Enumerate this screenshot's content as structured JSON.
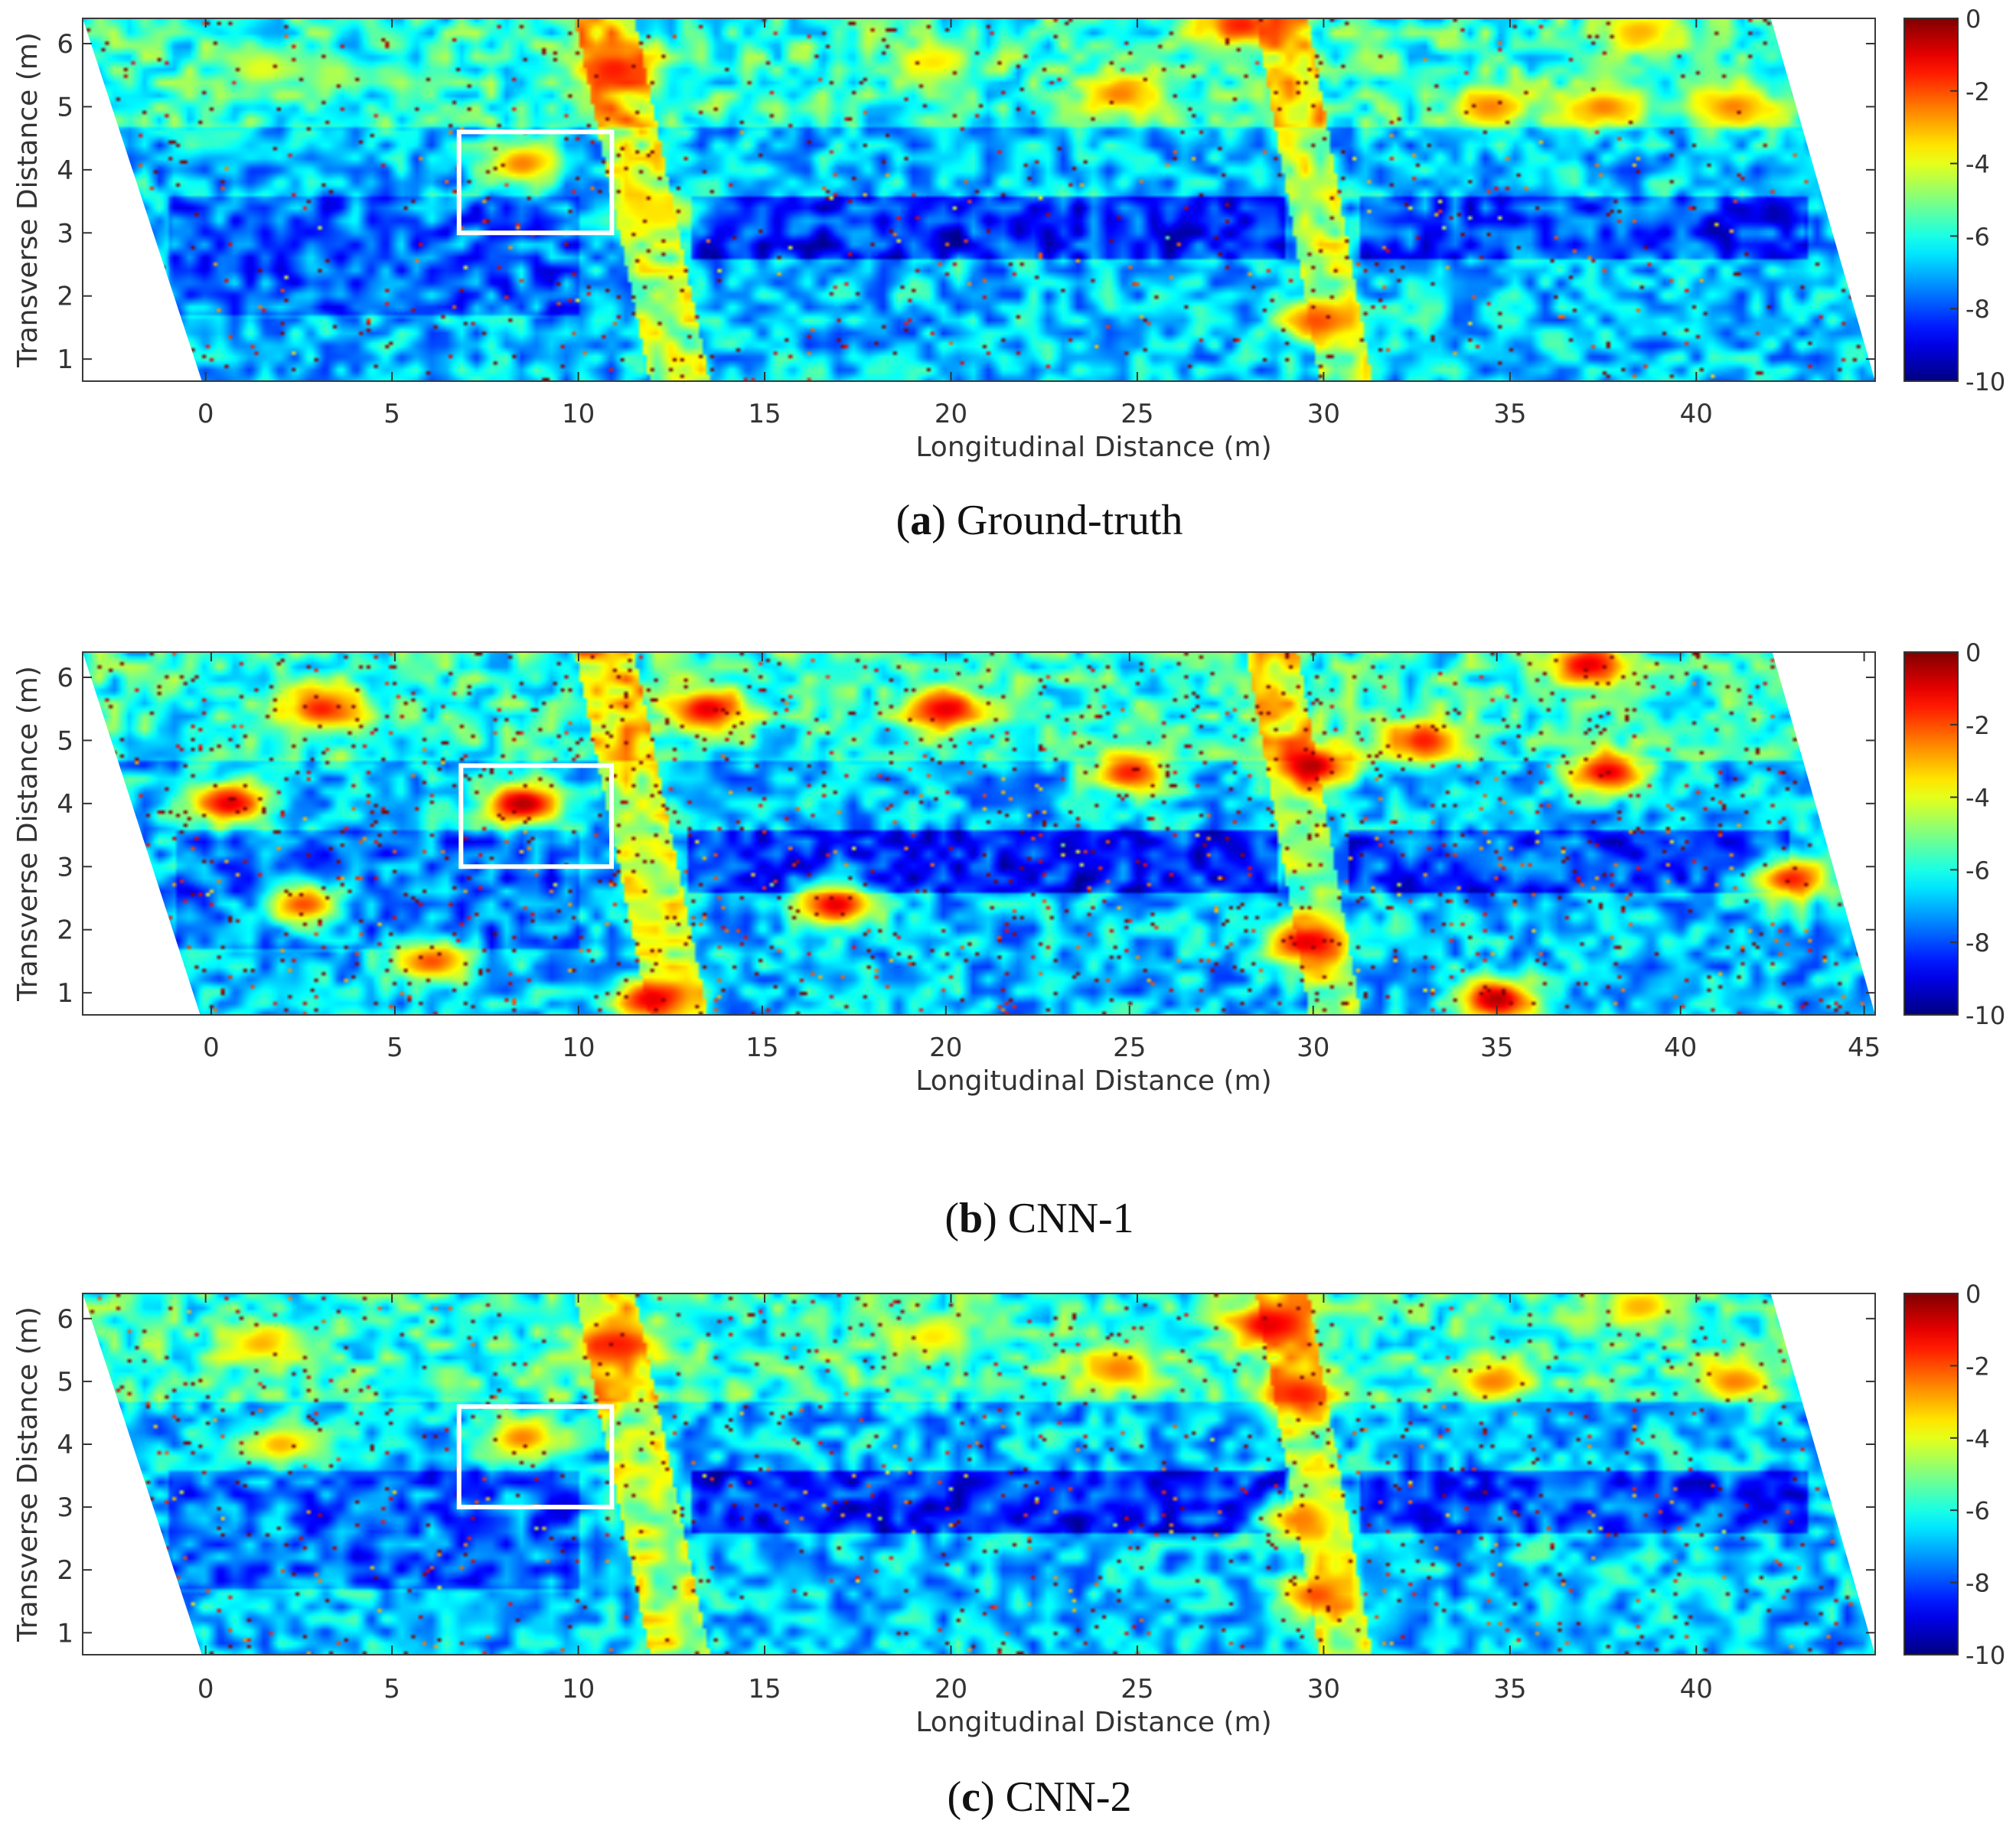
{
  "figure": {
    "colormap": "jet",
    "colors": {
      "frame": "#3a3a3a",
      "roi_box": "#ffffff",
      "background": "#ffffff",
      "jet_low": "#800000",
      "jet_mid": "#80ff80",
      "jet_high": "#00008f"
    }
  },
  "chart_data": [
    {
      "type": "heatmap",
      "id": "a",
      "caption": {
        "letter": "a",
        "text": "Ground-truth"
      },
      "title": "",
      "xlabel": "Longitudinal Distance (m)",
      "ylabel": "Transverse Distance (m)",
      "xticks": [
        0,
        5,
        10,
        15,
        20,
        25,
        30,
        35,
        40
      ],
      "yticks": [
        1,
        2,
        3,
        4,
        5,
        6
      ],
      "xlim": [
        -3.3,
        44.8
      ],
      "ylim": [
        0.65,
        6.4
      ],
      "colorbar": {
        "ticks": [
          0,
          -2,
          -4,
          -6,
          -8,
          -10
        ],
        "lim": [
          -10,
          0
        ]
      },
      "region_box": {
        "x": [
          6.8,
          10.9
        ],
        "y": [
          3.0,
          4.6
        ]
      },
      "noise_level": 0.18,
      "hotspots": [
        {
          "x": 11.0,
          "y": 5.6,
          "v": -8.5
        },
        {
          "x": 29.8,
          "y": 1.6,
          "v": -8.0
        },
        {
          "x": 24.5,
          "y": 5.2,
          "v": -7.5
        },
        {
          "x": 19.5,
          "y": 5.7,
          "v": -6.5
        },
        {
          "x": 34.5,
          "y": 5.0,
          "v": -7.5
        },
        {
          "x": 37.5,
          "y": 5.0,
          "v": -7.5
        },
        {
          "x": 8.5,
          "y": 4.1,
          "v": -7.5
        },
        {
          "x": 12.0,
          "y": 3.3,
          "v": -6.5
        },
        {
          "x": 1.5,
          "y": 5.6,
          "v": -6.0
        },
        {
          "x": 27.8,
          "y": 6.3,
          "v": -8.5
        },
        {
          "x": 38.5,
          "y": 6.2,
          "v": -7.0
        },
        {
          "x": 41.0,
          "y": 5.0,
          "v": -7.5
        }
      ]
    },
    {
      "type": "heatmap",
      "id": "b",
      "caption": {
        "letter": "b",
        "text": "CNN-1"
      },
      "title": "",
      "xlabel": "Longitudinal Distance (m)",
      "ylabel": "Transverse Distance (m)",
      "xticks": [
        0,
        5,
        10,
        15,
        20,
        25,
        30,
        35,
        40,
        45
      ],
      "yticks": [
        1,
        2,
        3,
        4,
        5,
        6
      ],
      "xlim": [
        -3.5,
        45.3
      ],
      "ylim": [
        0.65,
        6.4
      ],
      "colorbar": {
        "ticks": [
          0,
          -2,
          -4,
          -6,
          -8,
          -10
        ],
        "lim": [
          -10,
          0
        ]
      },
      "region_box": {
        "x": [
          6.8,
          10.9
        ],
        "y": [
          3.0,
          4.6
        ]
      },
      "noise_level": 0.34,
      "hotspots": [
        {
          "x": 8.5,
          "y": 4.0,
          "v": -9.5
        },
        {
          "x": 30.0,
          "y": 4.6,
          "v": -9.5
        },
        {
          "x": 35.0,
          "y": 0.9,
          "v": -9.5
        },
        {
          "x": 13.5,
          "y": 5.5,
          "v": -9.0
        },
        {
          "x": 38.0,
          "y": 4.5,
          "v": -9.0
        },
        {
          "x": 37.5,
          "y": 6.2,
          "v": -9.0
        },
        {
          "x": 29.8,
          "y": 1.8,
          "v": -9.0
        },
        {
          "x": 0.5,
          "y": 4.0,
          "v": -9.0
        },
        {
          "x": 3.0,
          "y": 5.5,
          "v": -8.5
        },
        {
          "x": 20.0,
          "y": 5.5,
          "v": -9.0
        },
        {
          "x": 25.0,
          "y": 4.5,
          "v": -8.5
        },
        {
          "x": 33.0,
          "y": 5.0,
          "v": -8.5
        },
        {
          "x": 17.0,
          "y": 2.4,
          "v": -9.0
        },
        {
          "x": 12.0,
          "y": 0.9,
          "v": -9.0
        },
        {
          "x": 43.0,
          "y": 2.8,
          "v": -8.5
        },
        {
          "x": 2.5,
          "y": 2.4,
          "v": -8.0
        },
        {
          "x": 6.0,
          "y": 1.5,
          "v": -8.0
        }
      ]
    },
    {
      "type": "heatmap",
      "id": "c",
      "caption": {
        "letter": "c",
        "text": "CNN-2"
      },
      "title": "",
      "xlabel": "Longitudinal Distance (m)",
      "ylabel": "Transverse Distance (m)",
      "xticks": [
        0,
        5,
        10,
        15,
        20,
        25,
        30,
        35,
        40
      ],
      "yticks": [
        1,
        2,
        3,
        4,
        5,
        6
      ],
      "xlim": [
        -3.3,
        44.8
      ],
      "ylim": [
        0.65,
        6.4
      ],
      "colorbar": {
        "ticks": [
          0,
          -2,
          -4,
          -6,
          -8,
          -10
        ],
        "lim": [
          -10,
          0
        ]
      },
      "region_box": {
        "x": [
          6.8,
          10.9
        ],
        "y": [
          3.0,
          4.6
        ]
      },
      "noise_level": 0.22,
      "hotspots": [
        {
          "x": 11.0,
          "y": 5.6,
          "v": -8.5
        },
        {
          "x": 28.5,
          "y": 5.9,
          "v": -9.0
        },
        {
          "x": 29.3,
          "y": 4.8,
          "v": -8.5
        },
        {
          "x": 29.8,
          "y": 1.6,
          "v": -8.0
        },
        {
          "x": 29.3,
          "y": 2.8,
          "v": -7.5
        },
        {
          "x": 24.5,
          "y": 5.2,
          "v": -7.5
        },
        {
          "x": 19.5,
          "y": 5.7,
          "v": -6.5
        },
        {
          "x": 34.5,
          "y": 5.0,
          "v": -7.5
        },
        {
          "x": 8.5,
          "y": 4.1,
          "v": -7.5
        },
        {
          "x": 2.0,
          "y": 4.0,
          "v": -7.0
        },
        {
          "x": 1.5,
          "y": 5.6,
          "v": -7.0
        },
        {
          "x": 38.5,
          "y": 6.2,
          "v": -7.0
        },
        {
          "x": 41.0,
          "y": 5.0,
          "v": -7.5
        }
      ]
    }
  ]
}
